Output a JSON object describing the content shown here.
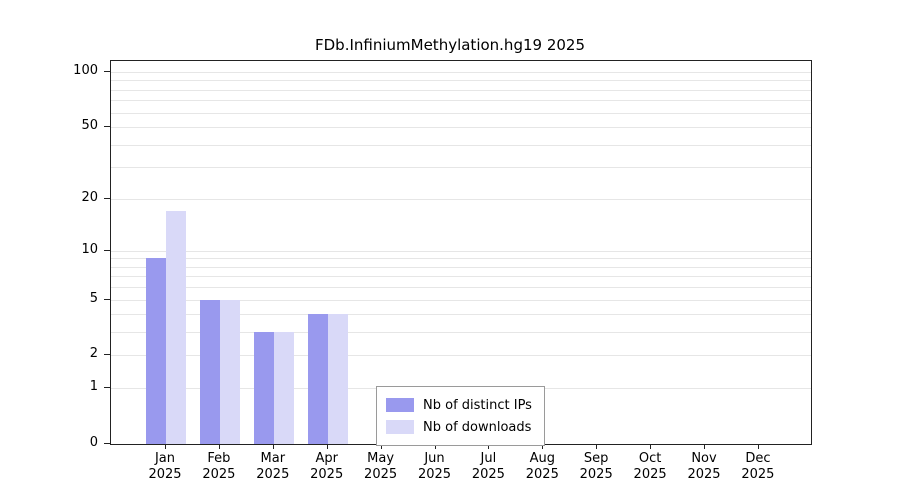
{
  "chart_data": {
    "type": "bar",
    "title": "FDb.InfiniumMethylation.hg19 2025",
    "categories": [
      "Jan",
      "Feb",
      "Mar",
      "Apr",
      "May",
      "Jun",
      "Jul",
      "Aug",
      "Sep",
      "Oct",
      "Nov",
      "Dec"
    ],
    "year": "2025",
    "series": [
      {
        "name": "Nb of distinct IPs",
        "color": "#9999ee",
        "values": [
          9,
          5,
          3,
          4,
          0,
          0,
          0,
          0,
          0,
          0,
          0,
          0
        ]
      },
      {
        "name": "Nb of downloads",
        "color": "#d9d9f8",
        "values": [
          17,
          5,
          3,
          4,
          0,
          0,
          0,
          0,
          0,
          0,
          0,
          0
        ]
      }
    ],
    "xlabel": "",
    "ylabel": "",
    "y_ticks": [
      0,
      1,
      2,
      5,
      10,
      20,
      50,
      100
    ],
    "y_scale": "log10(value+1)",
    "ylim": [
      0,
      110
    ],
    "grid": true,
    "gridline_values": [
      1,
      2,
      3,
      4,
      5,
      6,
      7,
      8,
      9,
      10,
      20,
      30,
      40,
      50,
      60,
      70,
      80,
      90,
      100
    ],
    "legend_position": "inside-bottom-center",
    "colors": {
      "grid": "#e6e6e6",
      "axis": "#222222",
      "background": "#ffffff"
    }
  }
}
